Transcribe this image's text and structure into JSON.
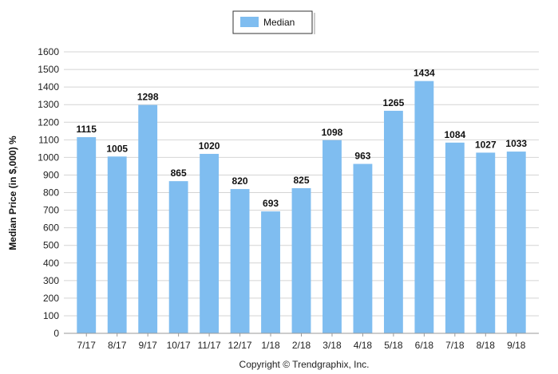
{
  "chart_data": {
    "type": "bar",
    "categories": [
      "7/17",
      "8/17",
      "9/17",
      "10/17",
      "11/17",
      "12/17",
      "1/18",
      "2/18",
      "3/18",
      "4/18",
      "5/18",
      "6/18",
      "7/18",
      "8/18",
      "9/18"
    ],
    "series": [
      {
        "name": "Median",
        "values": [
          1115,
          1005,
          1298,
          865,
          1020,
          820,
          693,
          825,
          1098,
          963,
          1265,
          1434,
          1084,
          1027,
          1033
        ],
        "color": "#7fbdf0"
      }
    ],
    "ylabel": "Median Price (in $,000) %",
    "xlabel": "",
    "ylim": [
      0,
      1600
    ],
    "y_ticks": [
      0,
      100,
      200,
      300,
      400,
      500,
      600,
      700,
      800,
      900,
      1000,
      1100,
      1200,
      1300,
      1400,
      1500,
      1600
    ],
    "grid": true,
    "legend_position": "top-center"
  },
  "footer": {
    "copyright": "Copyright © Trendgraphix, Inc."
  }
}
